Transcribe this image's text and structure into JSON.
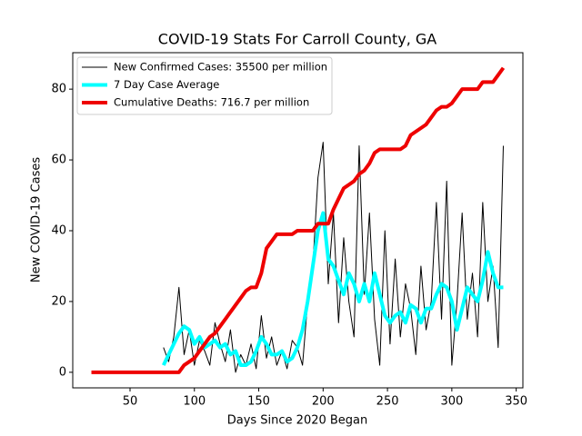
{
  "chart_data": {
    "type": "line",
    "title": "COVID-19 Stats For Carroll County, GA",
    "x_label": "Days Since 2020 Began",
    "y_label": "New COVID-19 Cases",
    "xlim": [
      5.5,
      355.2
    ],
    "ylim": [
      -4.4,
      90.3
    ],
    "xticks": [
      50,
      100,
      150,
      200,
      250,
      300,
      350
    ],
    "yticks": [
      0,
      20,
      40,
      60,
      80
    ],
    "legend": "upper left",
    "x": [
      20,
      24,
      28,
      32,
      36,
      40,
      44,
      48,
      52,
      56,
      60,
      64,
      68,
      72,
      76,
      80,
      84,
      88,
      92,
      96,
      100,
      104,
      108,
      112,
      116,
      120,
      124,
      128,
      132,
      136,
      140,
      144,
      148,
      152,
      156,
      160,
      164,
      168,
      172,
      176,
      180,
      184,
      188,
      192,
      196,
      200,
      204,
      208,
      212,
      216,
      220,
      224,
      228,
      232,
      236,
      240,
      244,
      248,
      252,
      256,
      260,
      264,
      268,
      272,
      276,
      280,
      284,
      288,
      292,
      296,
      300,
      304,
      308,
      312,
      316,
      320,
      324,
      328,
      332,
      336,
      340
    ],
    "series": [
      {
        "name": "New Confirmed Cases: 35500 per million",
        "color": "#000000",
        "width": 1,
        "values": [
          null,
          null,
          null,
          null,
          null,
          null,
          null,
          null,
          null,
          null,
          null,
          null,
          null,
          null,
          7,
          3,
          10,
          24,
          5,
          12,
          2,
          9,
          6,
          2,
          14,
          8,
          3,
          12,
          0,
          5,
          2,
          8,
          1,
          16,
          4,
          10,
          2,
          6,
          1,
          9,
          7,
          2,
          20,
          30,
          55,
          65,
          25,
          45,
          14,
          38,
          20,
          10,
          64,
          22,
          45,
          15,
          2,
          40,
          8,
          32,
          10,
          25,
          18,
          5,
          30,
          12,
          20,
          48,
          15,
          54,
          2,
          20,
          45,
          15,
          28,
          10,
          48,
          20,
          30,
          7,
          64
        ]
      },
      {
        "name": "7 Day Case Average",
        "color": "#00ffff",
        "width": 4,
        "values": [
          null,
          null,
          null,
          null,
          null,
          null,
          null,
          null,
          null,
          null,
          null,
          null,
          null,
          null,
          2,
          5,
          8,
          11,
          13,
          12,
          8,
          10,
          7,
          8,
          9,
          7,
          8,
          5,
          6,
          2,
          2,
          3,
          6,
          10,
          8,
          5,
          5,
          6,
          3,
          4,
          7,
          12,
          20,
          30,
          40,
          45,
          32,
          30,
          26,
          22,
          28,
          25,
          20,
          25,
          20,
          28,
          22,
          16,
          14,
          16,
          17,
          14,
          19,
          18,
          14,
          18,
          18,
          22,
          25,
          24,
          20,
          12,
          18,
          24,
          22,
          20,
          26,
          34,
          28,
          24,
          24
        ]
      },
      {
        "name": "Cumulative Deaths: 716.7 per million",
        "color": "#ee0000",
        "width": 4,
        "values": [
          0,
          0,
          0,
          0,
          0,
          0,
          0,
          0,
          0,
          0,
          0,
          0,
          0,
          0,
          0,
          0,
          0,
          0,
          2,
          3,
          4,
          6,
          8,
          10,
          11,
          13,
          15,
          17,
          19,
          21,
          23,
          24,
          24,
          28,
          35,
          37,
          39,
          39,
          39,
          39,
          40,
          40,
          40,
          40,
          42,
          42,
          42,
          46,
          49,
          52,
          53,
          54,
          56,
          57,
          59,
          62,
          63,
          63,
          63,
          63,
          63,
          64,
          67,
          68,
          69,
          70,
          72,
          74,
          75,
          75,
          76,
          78,
          80,
          80,
          80,
          80,
          82,
          82,
          82,
          84,
          86
        ]
      }
    ]
  }
}
